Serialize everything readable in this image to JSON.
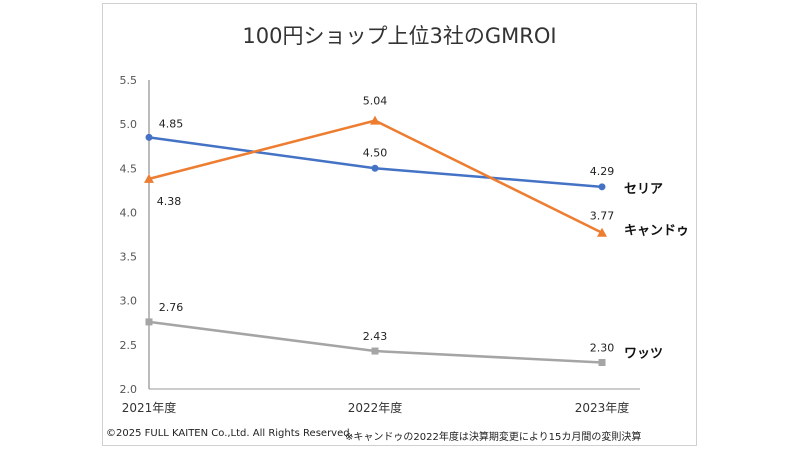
{
  "chart_data": {
    "type": "line",
    "title": "100円ショップ上位3社のGMROI",
    "categories": [
      "2021年度",
      "2022年度",
      "2023年度"
    ],
    "ylim": [
      2.0,
      5.5
    ],
    "yticks": [
      "2.0",
      "2.5",
      "3.0",
      "3.5",
      "4.0",
      "4.5",
      "5.0",
      "5.5"
    ],
    "grid": false,
    "legend": "inline-right",
    "series": [
      {
        "name": "セリア",
        "values": [
          4.85,
          4.5,
          4.29
        ],
        "labels": [
          "4.85",
          "4.50",
          "4.29"
        ],
        "color": "#4472C4",
        "marker": "circle"
      },
      {
        "name": "キャンドゥ",
        "values": [
          4.38,
          5.04,
          3.77
        ],
        "labels": [
          "4.38",
          "5.04",
          "3.77"
        ],
        "color": "#ED7D31",
        "marker": "triangle"
      },
      {
        "name": "ワッツ",
        "values": [
          2.76,
          2.43,
          2.3
        ],
        "labels": [
          "2.76",
          "2.43",
          "2.30"
        ],
        "color": "#A5A5A5",
        "marker": "square"
      }
    ]
  },
  "footer": {
    "copyright": "©2025 FULL KAITEN Co.,Ltd. All Rights Reserved.",
    "note": "※キャンドゥの2022年度は決算期変更により15カ月間の変則決算"
  }
}
